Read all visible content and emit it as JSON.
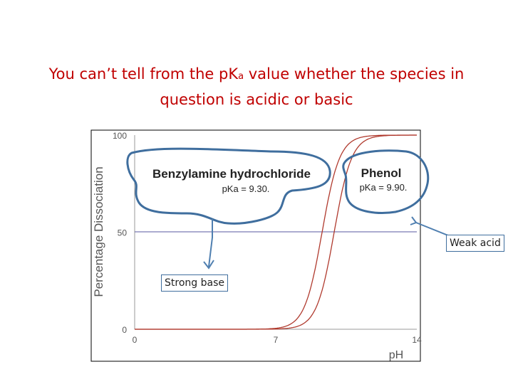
{
  "slide": {
    "title_part1": "You can’t tell from the pK",
    "title_subscript": "a",
    "title_part2": " value whether the species in",
    "title_line2": "question is acidic or basic"
  },
  "chart_data": {
    "type": "line",
    "xlabel": "pH",
    "ylabel": "Percentage Dissociation",
    "xlim": [
      0,
      14
    ],
    "ylim": [
      0,
      100
    ],
    "x_ticks": [
      "0",
      "7",
      "14"
    ],
    "y_ticks": [
      "0",
      "50",
      "100"
    ],
    "grid": false,
    "series": [
      {
        "name": "Benzylamine hydrochloride",
        "pKa": 9.3,
        "pka_text": "pKa = 9.30.",
        "color": "#b03a2e"
      },
      {
        "name": "Phenol",
        "pKa": 9.9,
        "pka_text": "pKa = 9.90.",
        "color": "#b03a2e"
      }
    ],
    "reference_line": {
      "y": 50,
      "color": "#5a5aa0"
    }
  },
  "callouts": {
    "strong_base": "Strong base",
    "weak_acid": "Weak acid"
  },
  "colors": {
    "title": "#c00000",
    "callout_stroke": "#3f6e9e"
  }
}
